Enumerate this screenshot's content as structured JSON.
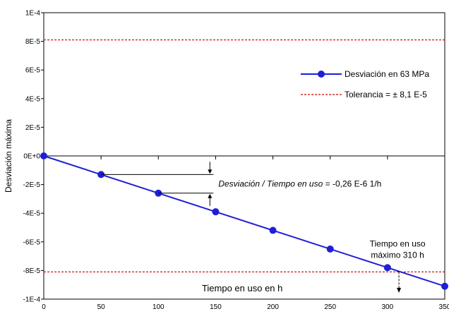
{
  "chart_data": {
    "type": "line",
    "title": "",
    "xlabel": "Tiempo en uso en h",
    "ylabel": "Desviación máxima",
    "xlim": [
      0,
      350
    ],
    "ylim": [
      -0.0001,
      0.0001
    ],
    "x_ticks": [
      0,
      50,
      100,
      150,
      200,
      250,
      300,
      350
    ],
    "x_tick_labels": [
      "0",
      "50",
      "100",
      "150",
      "200",
      "250",
      "300",
      "350"
    ],
    "y_ticks": [
      0.0001,
      8e-05,
      6e-05,
      4e-05,
      2e-05,
      0,
      -2e-05,
      -4e-05,
      -6e-05,
      -8e-05,
      -0.0001
    ],
    "y_tick_labels": [
      "1E-4",
      "8E-5",
      "6E-5",
      "4E-5",
      "2E-5",
      "0E+0",
      "-2E-5",
      "-4E-5",
      "-6E-5",
      "-8E-5",
      "-1E-4"
    ],
    "grid": false,
    "legend_position": "top-right",
    "series": [
      {
        "name": "Desviación en 63 MPa",
        "color": "#1f1fd6",
        "marker": "circle",
        "x": [
          0,
          50,
          100,
          150,
          200,
          250,
          300,
          350
        ],
        "y": [
          0,
          -1.3e-05,
          -2.6e-05,
          -3.9e-05,
          -5.2e-05,
          -6.5e-05,
          -7.8e-05,
          -9.1e-05
        ]
      }
    ],
    "reference_lines": [
      {
        "name": "Tolerancia = ± 8,1 E-5",
        "color": "#cc0000",
        "style": "dashed",
        "y": 8.1e-05
      },
      {
        "name": "",
        "color": "#cc0000",
        "style": "dashed",
        "y": -8.1e-05
      }
    ],
    "annotations": {
      "slope_label": "Desviación / Tiempo en uso",
      "slope_value": " = -0,26 E-6  1/h",
      "slope_bracket": {
        "x": 145,
        "y_top": -1.3e-05,
        "y_bottom": -2.6e-05
      },
      "max_time_line1": "Tiempo en uso",
      "max_time_line2": "máximo 310 h",
      "max_time_x": 310
    }
  }
}
